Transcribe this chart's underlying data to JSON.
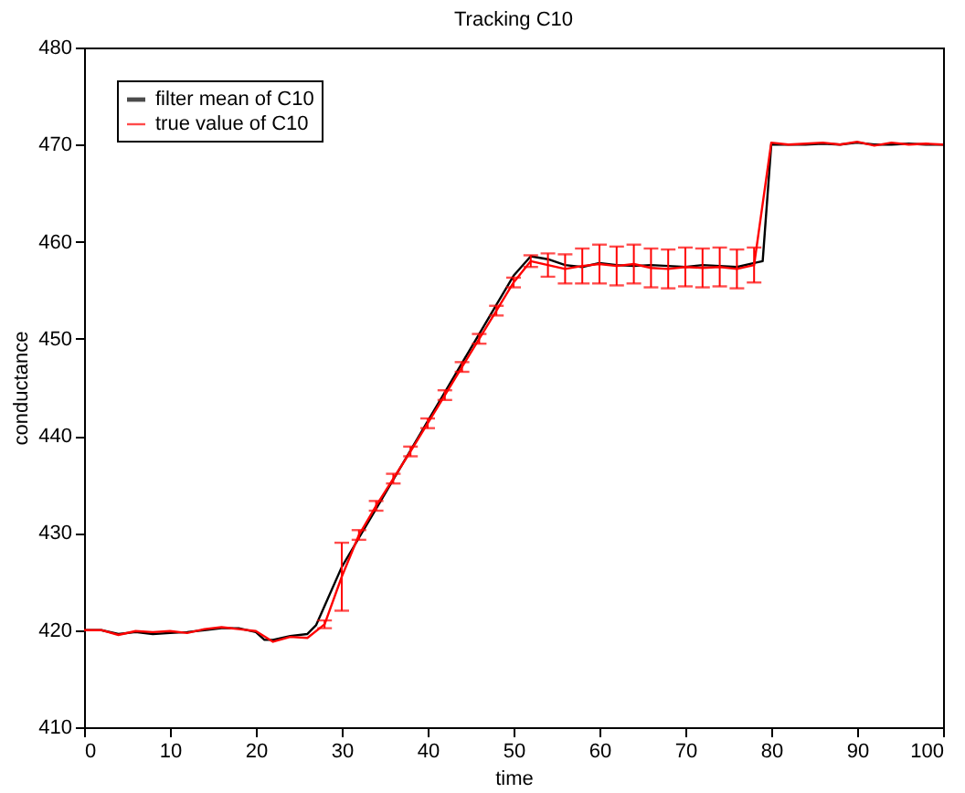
{
  "chart_data": {
    "type": "line",
    "title": "Tracking C10",
    "xlabel": "time",
    "ylabel": "conductance",
    "xlim": [
      0,
      100
    ],
    "ylim": [
      410,
      480
    ],
    "xticks": [
      0,
      10,
      20,
      30,
      40,
      50,
      60,
      70,
      80,
      90,
      100
    ],
    "yticks": [
      410,
      420,
      430,
      440,
      450,
      460,
      470,
      480
    ],
    "legend": "top left",
    "grid": false,
    "series": [
      {
        "name": "filter mean of C10",
        "color": "#000000",
        "x": [
          0,
          2,
          4,
          6,
          8,
          10,
          12,
          14,
          16,
          18,
          20,
          21,
          22,
          24,
          26,
          27,
          28,
          30,
          32,
          34,
          36,
          38,
          40,
          42,
          44,
          46,
          48,
          50,
          52,
          54,
          56,
          58,
          60,
          62,
          64,
          66,
          68,
          70,
          72,
          74,
          76,
          78,
          79,
          80,
          82,
          84,
          86,
          88,
          90,
          92,
          94,
          96,
          98,
          100
        ],
        "values": [
          420,
          420,
          419.6,
          419.8,
          419.6,
          419.7,
          419.8,
          420,
          420.2,
          420.2,
          419.8,
          419,
          419,
          419.4,
          419.6,
          420.5,
          422.5,
          426.5,
          429.5,
          432.5,
          435.5,
          438.5,
          441.5,
          444.5,
          447.5,
          450.5,
          453.5,
          456.5,
          458.5,
          458.2,
          457.6,
          457.4,
          457.8,
          457.6,
          457.5,
          457.6,
          457.5,
          457.4,
          457.6,
          457.5,
          457.4,
          457.8,
          458,
          470,
          470,
          470,
          470.1,
          470,
          470.2,
          470,
          470,
          470.1,
          470,
          470
        ]
      },
      {
        "name": "true value of C10",
        "color": "#ff0000",
        "x": [
          0,
          2,
          4,
          6,
          8,
          10,
          12,
          14,
          16,
          18,
          20,
          22,
          24,
          26,
          28,
          30,
          32,
          34,
          36,
          38,
          40,
          42,
          44,
          46,
          48,
          50,
          52,
          54,
          56,
          58,
          60,
          62,
          64,
          66,
          68,
          70,
          72,
          74,
          76,
          78,
          80,
          82,
          84,
          86,
          88,
          90,
          92,
          94,
          96,
          98,
          100
        ],
        "values": [
          420,
          420,
          419.5,
          419.9,
          419.8,
          419.9,
          419.7,
          420.1,
          420.3,
          420.1,
          419.9,
          418.8,
          419.3,
          419.2,
          420.6,
          425.5,
          429.8,
          432.8,
          435.6,
          438.4,
          441.3,
          444.2,
          447.1,
          450,
          452.9,
          455.8,
          458,
          457.6,
          457.2,
          457.5,
          457.7,
          457.5,
          457.7,
          457.3,
          457.2,
          457.4,
          457.3,
          457.4,
          457.2,
          457.6,
          470.2,
          470,
          470.1,
          470.2,
          470,
          470.3,
          469.9,
          470.2,
          470,
          470.1,
          470
        ],
        "errors": [
          null,
          null,
          null,
          null,
          null,
          null,
          null,
          null,
          null,
          null,
          null,
          null,
          null,
          null,
          0.4,
          3.5,
          0.5,
          0.5,
          0.5,
          0.5,
          0.5,
          0.5,
          0.5,
          0.5,
          0.5,
          0.5,
          0.6,
          1.2,
          1.5,
          1.8,
          2,
          2,
          2,
          2,
          2,
          2,
          2,
          2,
          2,
          1.8,
          null,
          null,
          null,
          null,
          null,
          null,
          null,
          null,
          null,
          null,
          null
        ]
      }
    ]
  }
}
